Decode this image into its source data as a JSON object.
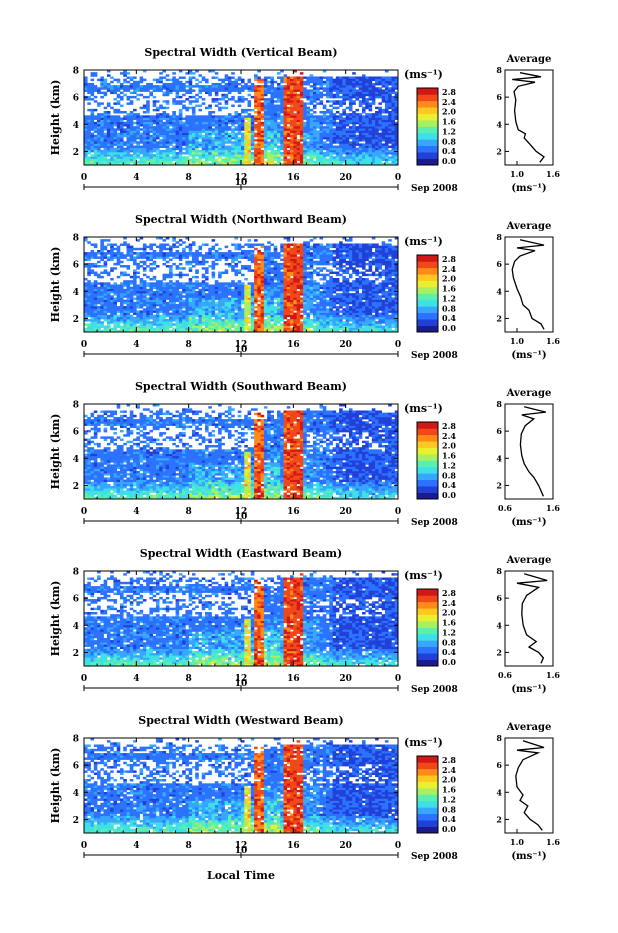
{
  "figure": {
    "xlabel": "Local Time",
    "date_label": "Sep 2008",
    "day_label": "10"
  },
  "colorbar": {
    "unit_label": "(ms⁻¹)",
    "tick_labels": [
      "2.8",
      "2.4",
      "2.0",
      "1.6",
      "1.2",
      "0.8",
      "0.4",
      "0.0"
    ],
    "min": 0.0,
    "max": 2.8,
    "colors": [
      "#ffffff",
      "#1b1b8f",
      "#2040d8",
      "#2a72ff",
      "#37a6ff",
      "#3ee0e8",
      "#5aeeb0",
      "#a8f060",
      "#e8f030",
      "#ffc820",
      "#ff8a18",
      "#f04818",
      "#d01818"
    ]
  },
  "chart_data": [
    {
      "type": "heatmap",
      "title": "Spectral Width (Vertical Beam)",
      "ylabel": "Height (km)",
      "xlim": [
        0,
        24
      ],
      "ylim": [
        1,
        8
      ],
      "xticks": [
        "0",
        "4",
        "8",
        "12",
        "16",
        "20",
        "0"
      ],
      "yticks": [
        "8",
        "6",
        "4",
        "2"
      ],
      "avg": {
        "title": "Average",
        "xlabel": "(ms⁻¹)",
        "xlim": [
          0.8,
          1.6
        ],
        "xticks": [
          "1.0",
          "1.6"
        ],
        "yticks": [
          "8",
          "6",
          "4",
          "2"
        ],
        "profile": [
          [
            1.38,
            1.2
          ],
          [
            1.45,
            1.6
          ],
          [
            1.32,
            2.0
          ],
          [
            1.22,
            2.5
          ],
          [
            1.12,
            3.0
          ],
          [
            1.14,
            3.3
          ],
          [
            1.02,
            3.6
          ],
          [
            0.98,
            4.2
          ],
          [
            0.96,
            5.0
          ],
          [
            0.98,
            5.8
          ],
          [
            0.95,
            6.4
          ],
          [
            1.02,
            6.8
          ],
          [
            1.3,
            7.1
          ],
          [
            0.92,
            7.3
          ],
          [
            1.4,
            7.5
          ],
          [
            1.05,
            7.8
          ]
        ]
      }
    },
    {
      "type": "heatmap",
      "title": "Spectral Width (Northward Beam)",
      "ylabel": "Height (km)",
      "xlim": [
        0,
        24
      ],
      "ylim": [
        1,
        8
      ],
      "xticks": [
        "0",
        "4",
        "8",
        "12",
        "16",
        "20",
        "0"
      ],
      "yticks": [
        "8",
        "6",
        "4",
        "2"
      ],
      "avg": {
        "title": "Average",
        "xlabel": "(ms⁻¹)",
        "xlim": [
          0.8,
          1.6
        ],
        "xticks": [
          "1.0",
          "1.6"
        ],
        "yticks": [
          "8",
          "6",
          "4",
          "2"
        ],
        "profile": [
          [
            1.45,
            1.2
          ],
          [
            1.4,
            1.6
          ],
          [
            1.25,
            2.0
          ],
          [
            1.2,
            2.6
          ],
          [
            1.1,
            3.0
          ],
          [
            1.06,
            3.6
          ],
          [
            1.0,
            4.2
          ],
          [
            0.94,
            5.0
          ],
          [
            0.92,
            5.6
          ],
          [
            0.96,
            6.2
          ],
          [
            1.05,
            6.6
          ],
          [
            1.3,
            7.0
          ],
          [
            1.0,
            7.2
          ],
          [
            1.45,
            7.4
          ],
          [
            1.05,
            7.8
          ]
        ]
      }
    },
    {
      "type": "heatmap",
      "title": "Spectral Width (Southward Beam)",
      "ylabel": "Height (km)",
      "xlim": [
        0,
        24
      ],
      "ylim": [
        1,
        8
      ],
      "xticks": [
        "0",
        "4",
        "8",
        "12",
        "16",
        "20",
        "0"
      ],
      "yticks": [
        "8",
        "6",
        "4",
        "2"
      ],
      "avg": {
        "title": "Average",
        "xlabel": "(ms⁻¹)",
        "xlim": [
          0.6,
          1.6
        ],
        "xticks": [
          "0.6",
          "1.6"
        ],
        "yticks": [
          "8",
          "6",
          "4",
          "2"
        ],
        "profile": [
          [
            1.4,
            1.2
          ],
          [
            1.35,
            1.6
          ],
          [
            1.3,
            2.0
          ],
          [
            1.2,
            2.6
          ],
          [
            1.1,
            3.0
          ],
          [
            1.0,
            3.6
          ],
          [
            0.95,
            4.2
          ],
          [
            0.92,
            5.0
          ],
          [
            0.94,
            5.8
          ],
          [
            1.02,
            6.4
          ],
          [
            1.2,
            6.9
          ],
          [
            0.95,
            7.2
          ],
          [
            1.45,
            7.4
          ],
          [
            1.0,
            7.8
          ]
        ]
      }
    },
    {
      "type": "heatmap",
      "title": "Spectral Width (Eastward Beam)",
      "ylabel": "Height (km)",
      "xlim": [
        0,
        24
      ],
      "ylim": [
        1,
        8
      ],
      "xticks": [
        "0",
        "4",
        "8",
        "12",
        "16",
        "20",
        "0"
      ],
      "yticks": [
        "8",
        "6",
        "4",
        "2"
      ],
      "avg": {
        "title": "Average",
        "xlabel": "(ms⁻¹)",
        "xlim": [
          0.6,
          1.6
        ],
        "xticks": [
          "0.6",
          "1.6"
        ],
        "yticks": [
          "8",
          "6",
          "4",
          "2"
        ],
        "profile": [
          [
            1.35,
            1.2
          ],
          [
            1.4,
            1.6
          ],
          [
            1.3,
            2.0
          ],
          [
            1.1,
            2.4
          ],
          [
            1.25,
            2.8
          ],
          [
            1.05,
            3.3
          ],
          [
            0.98,
            4.0
          ],
          [
            0.95,
            4.8
          ],
          [
            0.96,
            5.6
          ],
          [
            1.05,
            6.2
          ],
          [
            1.3,
            6.8
          ],
          [
            0.85,
            7.1
          ],
          [
            1.48,
            7.3
          ],
          [
            1.0,
            7.8
          ]
        ]
      }
    },
    {
      "type": "heatmap",
      "title": "Spectral Width (Westward Beam)",
      "ylabel": "Height (km)",
      "xlim": [
        0,
        24
      ],
      "ylim": [
        1,
        8
      ],
      "xticks": [
        "0",
        "4",
        "8",
        "12",
        "16",
        "20",
        "0"
      ],
      "yticks": [
        "8",
        "6",
        "4",
        "2"
      ],
      "avg": {
        "title": "Average",
        "xlabel": "(ms⁻¹)",
        "xlim": [
          0.8,
          1.6
        ],
        "xticks": [
          "1.0",
          "1.6"
        ],
        "yticks": [
          "8",
          "6",
          "4",
          "2"
        ],
        "profile": [
          [
            1.42,
            1.2
          ],
          [
            1.35,
            1.6
          ],
          [
            1.22,
            2.0
          ],
          [
            1.12,
            2.5
          ],
          [
            1.18,
            3.0
          ],
          [
            1.05,
            3.4
          ],
          [
            1.1,
            3.8
          ],
          [
            1.0,
            4.4
          ],
          [
            0.98,
            5.2
          ],
          [
            1.02,
            5.8
          ],
          [
            1.1,
            6.4
          ],
          [
            1.35,
            6.9
          ],
          [
            1.0,
            7.1
          ],
          [
            1.45,
            7.3
          ],
          [
            1.1,
            7.8
          ]
        ]
      }
    }
  ]
}
